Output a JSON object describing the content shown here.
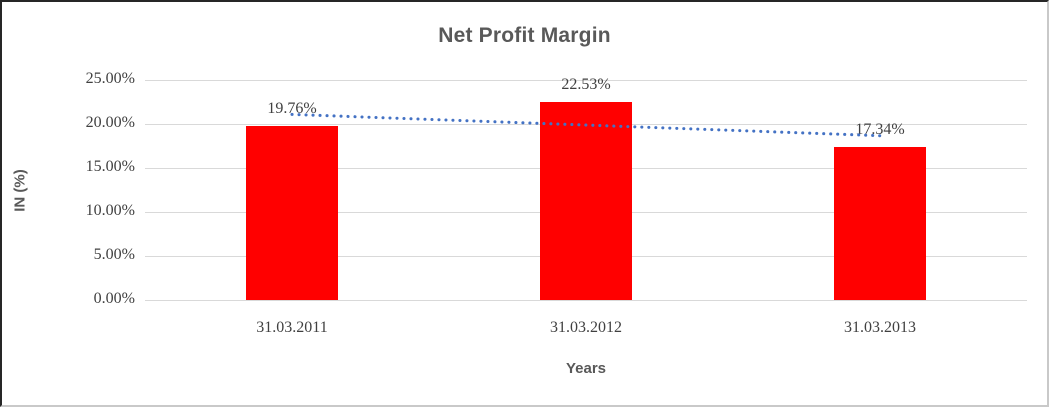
{
  "chart_data": {
    "type": "bar",
    "title": "Net Profit Margin",
    "xlabel": "Years",
    "ylabel": "IN (%)",
    "categories": [
      "31.03.2011",
      "31.03.2012",
      "31.03.2013"
    ],
    "series": [
      {
        "name": "Net Profit Margin",
        "values": [
          19.76,
          22.53,
          17.34
        ],
        "data_labels": [
          "19.76%",
          "22.53%",
          "17.34%"
        ]
      }
    ],
    "trendline": {
      "type": "linear",
      "style": "dotted",
      "fitted_values": [
        21.09,
        19.88,
        18.67
      ]
    },
    "ylim": [
      0,
      25
    ],
    "ytick_step": 5,
    "ytick_labels": [
      "0.00%",
      "5.00%",
      "10.00%",
      "15.00%",
      "20.00%",
      "25.00%"
    ],
    "grid": true,
    "legend": "none",
    "colors": {
      "bar": "#ff0000",
      "trendline": "#4472c4",
      "gridline": "#d9d9d9",
      "title_text": "#595959",
      "tick_text": "#404040"
    }
  }
}
